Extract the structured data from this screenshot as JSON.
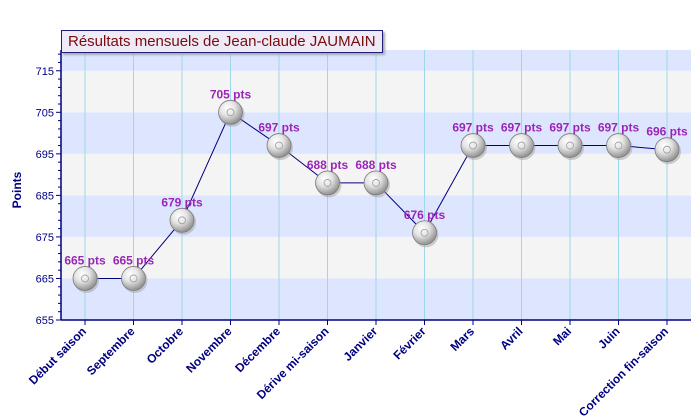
{
  "chart_data": {
    "type": "line",
    "title": "Résultats mensuels de Jean-claude JAUMAIN",
    "xlabel": "",
    "ylabel": "Points",
    "ylim": [
      655,
      720
    ],
    "yticks": [
      655,
      665,
      675,
      685,
      695,
      705,
      715
    ],
    "categories": [
      "Début saison",
      "Septembre",
      "Octobre",
      "Novembre",
      "Décembre",
      "Dérive mi-saison",
      "Janvier",
      "Février",
      "Mars",
      "Avril",
      "Mai",
      "Juin",
      "Correction fin-saison"
    ],
    "series": [
      {
        "values": [
          665,
          665,
          679,
          705,
          697,
          688,
          688,
          676,
          697,
          697,
          697,
          697,
          696
        ],
        "labels": [
          "665 pts",
          "665 pts",
          "679 pts",
          "705 pts",
          "697 pts",
          "688 pts",
          "688 pts",
          "676 pts",
          "697 pts",
          "697 pts",
          "697 pts",
          "697 pts",
          "696 pts"
        ]
      }
    ],
    "grid": true,
    "colors": {
      "line": "#00007a",
      "axis": "#000080",
      "label": "#9a26b8",
      "band_blue": "#dde5ff",
      "band_grey": "#f4f4f4",
      "grid_vertical": "#9ed8e8",
      "title_text": "#7a0b0b"
    }
  }
}
